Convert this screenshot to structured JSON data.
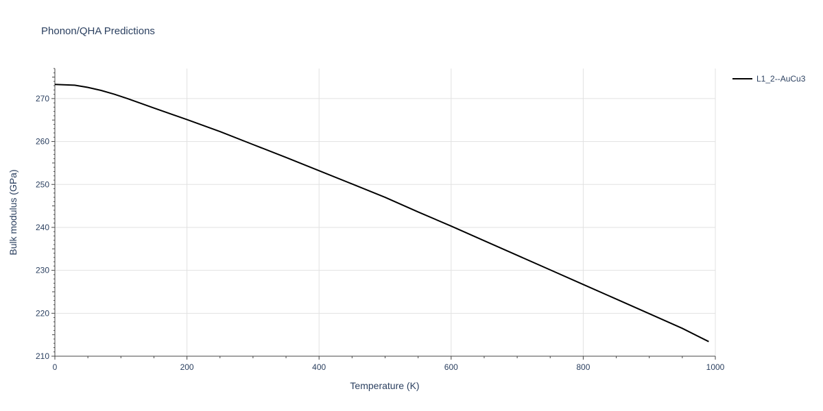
{
  "chart_data": {
    "type": "line",
    "title": "Phonon/QHA Predictions",
    "xlabel": "Temperature (K)",
    "ylabel": "Bulk modulus (GPa)",
    "xlim": [
      0,
      1000
    ],
    "ylim": [
      210,
      277
    ],
    "x_ticks": [
      0,
      200,
      400,
      600,
      800,
      1000
    ],
    "y_ticks": [
      210,
      220,
      230,
      240,
      250,
      260,
      270
    ],
    "grid": true,
    "legend_position": "top-right",
    "colors": {
      "series_line": "#000000",
      "grid": "#e1e1e1",
      "text": "#2a3f5f"
    },
    "series": [
      {
        "name": "L1_2--AuCu3",
        "x": [
          0,
          30,
          50,
          70,
          90,
          110,
          130,
          150,
          200,
          250,
          300,
          350,
          400,
          450,
          500,
          550,
          600,
          650,
          700,
          750,
          800,
          850,
          900,
          950,
          990
        ],
        "y": [
          273.3,
          273.1,
          272.6,
          271.9,
          271.0,
          270.0,
          268.9,
          267.8,
          265.1,
          262.3,
          259.3,
          256.3,
          253.2,
          250.1,
          247.0,
          243.6,
          240.3,
          236.9,
          233.5,
          230.1,
          226.7,
          223.3,
          219.9,
          216.5,
          213.4
        ]
      }
    ]
  }
}
